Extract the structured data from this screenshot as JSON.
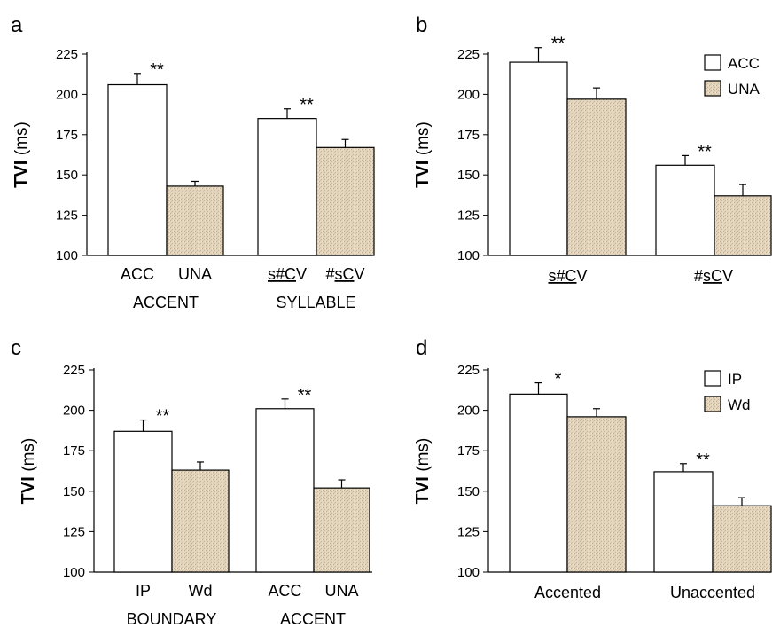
{
  "colors": {
    "accented_bar": "#ffffff",
    "unaccented_bar": "#e3d5bd",
    "axis": "#000000"
  },
  "chart_data": [
    {
      "panel": "a",
      "type": "bar",
      "ylabel_bold": "TVI",
      "ylabel_unit": "(ms)",
      "ylim": [
        100,
        225
      ],
      "yticks": [
        100,
        125,
        150,
        175,
        200,
        225
      ],
      "legend": null,
      "groups": [
        {
          "label": "ACCENT",
          "significance": "**",
          "bars": [
            {
              "label": "ACC",
              "value": 206,
              "error": 7,
              "fill": "plain",
              "underline": ""
            },
            {
              "label": "UNA",
              "value": 143,
              "error": 3,
              "fill": "texture",
              "underline": ""
            }
          ]
        },
        {
          "label": "SYLLABLE",
          "significance": "**",
          "bars": [
            {
              "label": "s#CV",
              "value": 185,
              "error": 6,
              "fill": "plain",
              "underline": "s#C"
            },
            {
              "label": "#sCV",
              "value": 167,
              "error": 5,
              "fill": "texture",
              "underline": "sC"
            }
          ]
        }
      ]
    },
    {
      "panel": "b",
      "type": "bar",
      "ylabel_bold": "TVI",
      "ylabel_unit": "(ms)",
      "ylim": [
        100,
        225
      ],
      "yticks": [
        100,
        125,
        150,
        175,
        200,
        225
      ],
      "legend": [
        "ACC",
        "UNA"
      ],
      "groups": [
        {
          "label": "s#CV",
          "underline": "s#C",
          "significance": "**",
          "bars": [
            {
              "label": "",
              "value": 220,
              "error": 9,
              "fill": "plain"
            },
            {
              "label": "",
              "value": 197,
              "error": 7,
              "fill": "texture"
            }
          ]
        },
        {
          "label": "#sCV",
          "underline": "sC",
          "significance": "**",
          "bars": [
            {
              "label": "",
              "value": 156,
              "error": 6,
              "fill": "plain"
            },
            {
              "label": "",
              "value": 137,
              "error": 7,
              "fill": "texture"
            }
          ]
        }
      ]
    },
    {
      "panel": "c",
      "type": "bar",
      "ylabel_bold": "TVI",
      "ylabel_unit": "(ms)",
      "ylim": [
        100,
        225
      ],
      "yticks": [
        100,
        125,
        150,
        175,
        200,
        225
      ],
      "legend": null,
      "groups": [
        {
          "label": "BOUNDARY",
          "significance": "**",
          "bars": [
            {
              "label": "IP",
              "value": 187,
              "error": 7,
              "fill": "plain",
              "underline": ""
            },
            {
              "label": "Wd",
              "value": 163,
              "error": 5,
              "fill": "texture",
              "underline": ""
            }
          ]
        },
        {
          "label": "ACCENT",
          "significance": "**",
          "bars": [
            {
              "label": "ACC",
              "value": 201,
              "error": 6,
              "fill": "plain",
              "underline": ""
            },
            {
              "label": "UNA",
              "value": 152,
              "error": 5,
              "fill": "texture",
              "underline": ""
            }
          ]
        }
      ]
    },
    {
      "panel": "d",
      "type": "bar",
      "ylabel_bold": "TVI",
      "ylabel_unit": "(ms)",
      "ylim": [
        100,
        225
      ],
      "yticks": [
        100,
        125,
        150,
        175,
        200,
        225
      ],
      "legend": [
        "IP",
        "Wd"
      ],
      "groups": [
        {
          "label": "Accented",
          "significance": "*",
          "bars": [
            {
              "label": "",
              "value": 210,
              "error": 7,
              "fill": "plain"
            },
            {
              "label": "",
              "value": 196,
              "error": 5,
              "fill": "texture"
            }
          ]
        },
        {
          "label": "Unaccented",
          "significance": "**",
          "bars": [
            {
              "label": "",
              "value": 162,
              "error": 5,
              "fill": "plain"
            },
            {
              "label": "",
              "value": 141,
              "error": 5,
              "fill": "texture"
            }
          ]
        }
      ]
    }
  ]
}
